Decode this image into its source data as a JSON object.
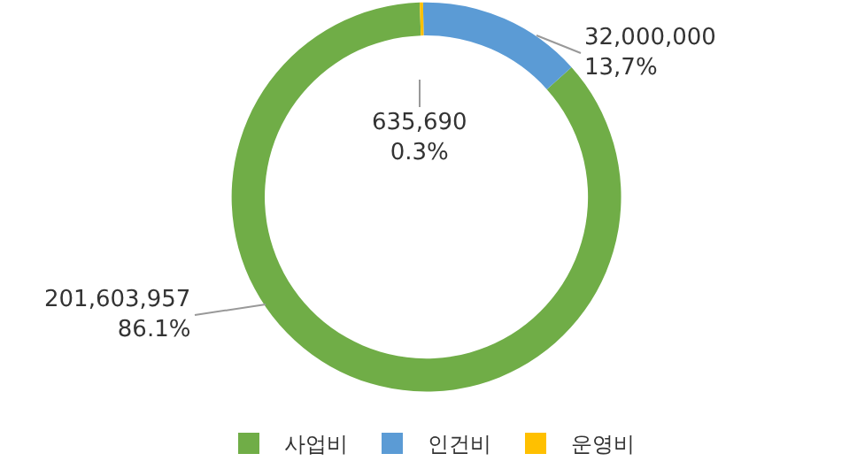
{
  "chart_data": {
    "type": "donut",
    "categories": [
      "사업비",
      "인건비",
      "운영비"
    ],
    "values": [
      201603957,
      32000000,
      635690
    ],
    "colors": [
      "#70ad47",
      "#5b9bd5",
      "#ffc000"
    ],
    "value_labels": [
      "201,603,957\n86.1%",
      "32,000,000\n13,7%",
      "635,690\n0.3%"
    ],
    "legend": "bottom"
  }
}
